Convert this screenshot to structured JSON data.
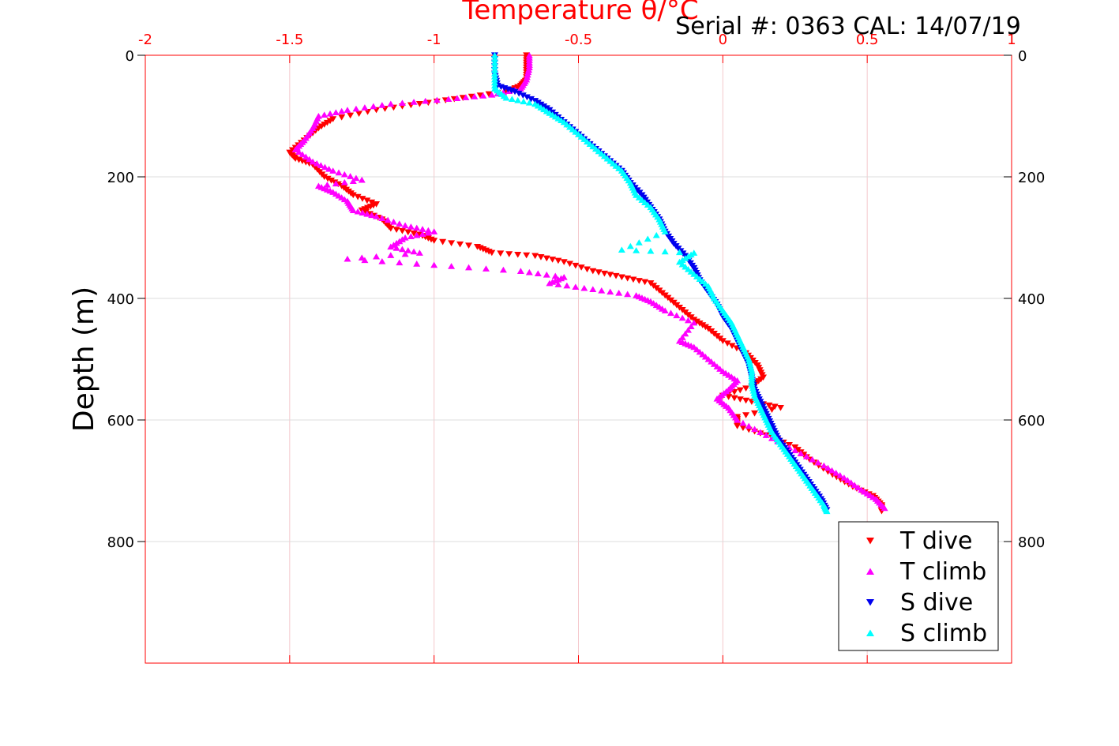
{
  "chart_data": {
    "type": "scatter",
    "title": "Temperature θ/°C",
    "top_text": "Serial #: 0363  CAL: 14/07/19",
    "xlabel": "Temperature θ/°C",
    "ylabel": "Depth (m)",
    "xlim": [
      -2,
      1
    ],
    "ylim": [
      0,
      1000
    ],
    "y_reversed": true,
    "x_axis_position": "top",
    "xticks": [
      -2,
      -1.5,
      -1,
      -0.5,
      0,
      0.5,
      1
    ],
    "xtick_labels": [
      "-2",
      "-1.5",
      "-1",
      "-0.5",
      "0",
      "0.5",
      "1"
    ],
    "yticks": [
      0,
      200,
      400,
      600,
      800
    ],
    "ytick_labels": [
      "0",
      "200",
      "400",
      "600",
      "800"
    ],
    "grid": true,
    "legend_position": "bottom-right",
    "series": [
      {
        "name": "T dive",
        "marker": "triangle-down",
        "color": "#ff0000",
        "points": [
          [
            -0.68,
            0
          ],
          [
            -0.68,
            20
          ],
          [
            -0.68,
            40
          ],
          [
            -0.7,
            50
          ],
          [
            -0.75,
            60
          ],
          [
            -0.9,
            70
          ],
          [
            -1.05,
            80
          ],
          [
            -1.2,
            90
          ],
          [
            -1.35,
            105
          ],
          [
            -1.4,
            120
          ],
          [
            -1.45,
            140
          ],
          [
            -1.5,
            160
          ],
          [
            -1.48,
            170
          ],
          [
            -1.42,
            180
          ],
          [
            -1.38,
            200
          ],
          [
            -1.32,
            215
          ],
          [
            -1.28,
            230
          ],
          [
            -1.2,
            245
          ],
          [
            -1.25,
            255
          ],
          [
            -1.18,
            270
          ],
          [
            -1.15,
            285
          ],
          [
            -1.05,
            295
          ],
          [
            -1.0,
            305
          ],
          [
            -0.85,
            315
          ],
          [
            -0.8,
            325
          ],
          [
            -0.65,
            330
          ],
          [
            -0.55,
            340
          ],
          [
            -0.45,
            355
          ],
          [
            -0.35,
            365
          ],
          [
            -0.25,
            375
          ],
          [
            -0.2,
            395
          ],
          [
            -0.15,
            415
          ],
          [
            -0.1,
            435
          ],
          [
            -0.05,
            450
          ],
          [
            0.0,
            470
          ],
          [
            0.08,
            490
          ],
          [
            0.12,
            510
          ],
          [
            0.14,
            530
          ],
          [
            0.1,
            545
          ],
          [
            0.0,
            560
          ],
          [
            0.1,
            570
          ],
          [
            0.2,
            580
          ],
          [
            0.05,
            595
          ],
          [
            0.05,
            610
          ],
          [
            0.15,
            625
          ],
          [
            0.25,
            645
          ],
          [
            0.3,
            665
          ],
          [
            0.38,
            690
          ],
          [
            0.45,
            710
          ],
          [
            0.52,
            725
          ],
          [
            0.55,
            740
          ],
          [
            0.55,
            750
          ]
        ]
      },
      {
        "name": "T climb",
        "marker": "triangle-up",
        "color": "#ff00ff",
        "points": [
          [
            -0.67,
            0
          ],
          [
            -0.67,
            20
          ],
          [
            -0.68,
            40
          ],
          [
            -0.7,
            55
          ],
          [
            -0.8,
            65
          ],
          [
            -0.95,
            72
          ],
          [
            -1.15,
            80
          ],
          [
            -1.3,
            90
          ],
          [
            -1.4,
            100
          ],
          [
            -1.42,
            120
          ],
          [
            -1.45,
            140
          ],
          [
            -1.48,
            155
          ],
          [
            -1.42,
            175
          ],
          [
            -1.35,
            190
          ],
          [
            -1.25,
            205
          ],
          [
            -1.4,
            215
          ],
          [
            -1.35,
            225
          ],
          [
            -1.3,
            240
          ],
          [
            -1.28,
            255
          ],
          [
            -1.2,
            265
          ],
          [
            -1.1,
            280
          ],
          [
            -1.0,
            290
          ],
          [
            -1.1,
            300
          ],
          [
            -1.15,
            315
          ],
          [
            -1.05,
            325
          ],
          [
            -1.3,
            335
          ],
          [
            -1.0,
            345
          ],
          [
            -0.7,
            355
          ],
          [
            -0.55,
            365
          ],
          [
            -0.6,
            375
          ],
          [
            -0.45,
            385
          ],
          [
            -0.3,
            395
          ],
          [
            -0.25,
            405
          ],
          [
            -0.2,
            420
          ],
          [
            -0.1,
            440
          ],
          [
            -0.15,
            470
          ],
          [
            -0.1,
            480
          ],
          [
            -0.05,
            500
          ],
          [
            0.0,
            520
          ],
          [
            0.05,
            535
          ],
          [
            0.02,
            550
          ],
          [
            -0.02,
            565
          ],
          [
            0.02,
            580
          ],
          [
            0.05,
            600
          ],
          [
            0.15,
            625
          ],
          [
            0.25,
            650
          ],
          [
            0.35,
            675
          ],
          [
            0.42,
            695
          ],
          [
            0.48,
            715
          ],
          [
            0.53,
            730
          ],
          [
            0.56,
            745
          ]
        ]
      },
      {
        "name": "S dive",
        "marker": "triangle-down",
        "color": "#0000ee",
        "points": [
          [
            -0.79,
            0
          ],
          [
            -0.79,
            30
          ],
          [
            -0.78,
            50
          ],
          [
            -0.72,
            60
          ],
          [
            -0.65,
            75
          ],
          [
            -0.6,
            90
          ],
          [
            -0.55,
            110
          ],
          [
            -0.5,
            130
          ],
          [
            -0.45,
            150
          ],
          [
            -0.4,
            170
          ],
          [
            -0.35,
            190
          ],
          [
            -0.32,
            210
          ],
          [
            -0.28,
            230
          ],
          [
            -0.25,
            250
          ],
          [
            -0.22,
            270
          ],
          [
            -0.2,
            290
          ],
          [
            -0.17,
            310
          ],
          [
            -0.13,
            330
          ],
          [
            -0.1,
            350
          ],
          [
            -0.08,
            370
          ],
          [
            -0.05,
            390
          ],
          [
            -0.02,
            410
          ],
          [
            0.0,
            430
          ],
          [
            0.03,
            450
          ],
          [
            0.05,
            470
          ],
          [
            0.07,
            490
          ],
          [
            0.09,
            510
          ],
          [
            0.1,
            530
          ],
          [
            0.11,
            550
          ],
          [
            0.13,
            570
          ],
          [
            0.15,
            590
          ],
          [
            0.17,
            610
          ],
          [
            0.19,
            630
          ],
          [
            0.22,
            650
          ],
          [
            0.25,
            670
          ],
          [
            0.28,
            690
          ],
          [
            0.31,
            710
          ],
          [
            0.34,
            730
          ],
          [
            0.36,
            748
          ]
        ]
      },
      {
        "name": "S climb",
        "marker": "triangle-up",
        "color": "#00ffff",
        "points": [
          [
            -0.79,
            0
          ],
          [
            -0.79,
            30
          ],
          [
            -0.79,
            55
          ],
          [
            -0.75,
            70
          ],
          [
            -0.65,
            80
          ],
          [
            -0.6,
            95
          ],
          [
            -0.55,
            110
          ],
          [
            -0.5,
            130
          ],
          [
            -0.45,
            150
          ],
          [
            -0.4,
            170
          ],
          [
            -0.35,
            190
          ],
          [
            -0.32,
            210
          ],
          [
            -0.3,
            230
          ],
          [
            -0.25,
            250
          ],
          [
            -0.22,
            270
          ],
          [
            -0.2,
            290
          ],
          [
            -0.35,
            320
          ],
          [
            -0.1,
            325
          ],
          [
            -0.15,
            340
          ],
          [
            -0.1,
            360
          ],
          [
            -0.05,
            380
          ],
          [
            -0.03,
            400
          ],
          [
            0.0,
            420
          ],
          [
            0.03,
            440
          ],
          [
            0.05,
            460
          ],
          [
            0.07,
            480
          ],
          [
            0.09,
            500
          ],
          [
            0.1,
            520
          ],
          [
            0.1,
            540
          ],
          [
            0.11,
            560
          ],
          [
            0.13,
            580
          ],
          [
            0.15,
            600
          ],
          [
            0.17,
            620
          ],
          [
            0.2,
            640
          ],
          [
            0.23,
            660
          ],
          [
            0.26,
            680
          ],
          [
            0.29,
            700
          ],
          [
            0.32,
            720
          ],
          [
            0.35,
            740
          ],
          [
            0.36,
            750
          ]
        ]
      }
    ]
  }
}
